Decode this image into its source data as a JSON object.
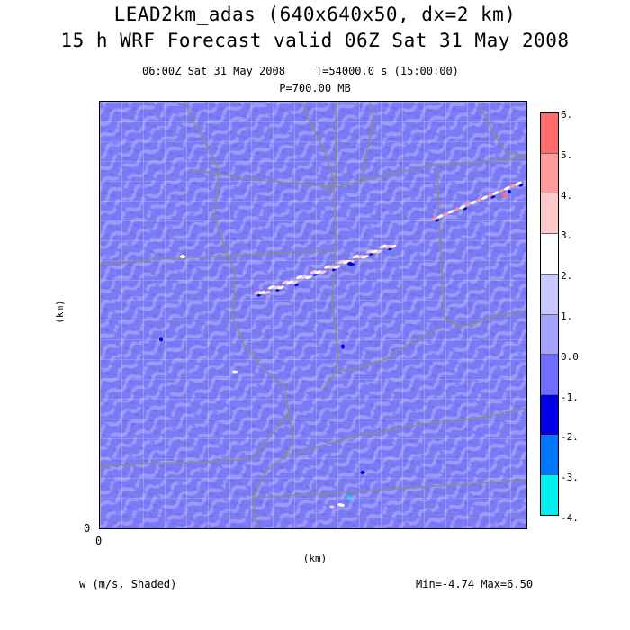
{
  "header": {
    "title_line1": "LEAD2km_adas (640x640x50, dx=2 km)",
    "title_line2": "15 h WRF Forecast valid 06Z Sat 31 May 2008",
    "valid_time": "06:00Z Sat 31 May 2008",
    "model_time": "T=54000.0 s (15:00:00)",
    "pressure_level": "P=700.00 MB"
  },
  "axes": {
    "y_label": "(km)",
    "x_label": "(km)",
    "y_origin": "0",
    "x_origin": "0"
  },
  "footer": {
    "field_label": "w (m/s, Shaded)",
    "min_max": "Min=-4.74 Max=6.50"
  },
  "colorbar": {
    "ticks": [
      "6.",
      "5.",
      "4.",
      "3.",
      "2.",
      "1.",
      "0.0",
      "-1.",
      "-2.",
      "-3.",
      "-4."
    ],
    "colors": [
      "#ff6a6a",
      "#ff9a9a",
      "#ffc9c9",
      "#ffffff",
      "#c8c8ff",
      "#a4a4ff",
      "#6e6eff",
      "#0000e6",
      "#0078ff",
      "#00f0f0"
    ]
  },
  "map": {
    "background": "#7b7bf5",
    "dominant_color": "#9a9af8",
    "border_color": "#8c8c8c",
    "county_color": "#d8d8f0"
  }
}
